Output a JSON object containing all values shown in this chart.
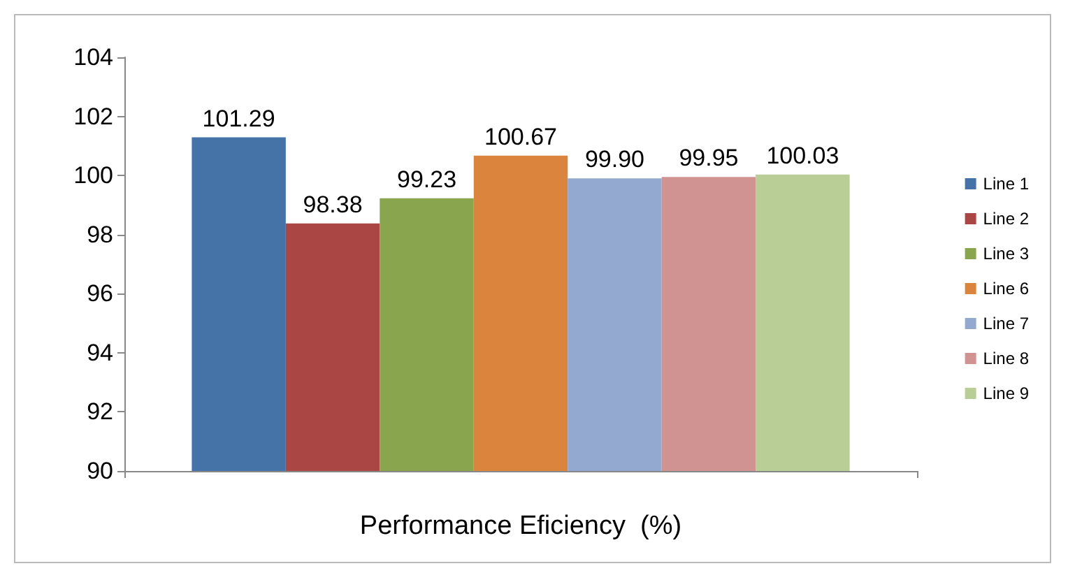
{
  "chart_data": {
    "type": "bar",
    "xlabel": "Performance Eficiency  (%)",
    "categories": [
      null
    ],
    "series": [
      {
        "name": "Line 1",
        "color": "#4572a7",
        "values": [
          101.29
        ]
      },
      {
        "name": "Line 2",
        "color": "#aa4643",
        "values": [
          98.38
        ]
      },
      {
        "name": "Line 3",
        "color": "#89a54e",
        "values": [
          99.23
        ]
      },
      {
        "name": "Line 6",
        "color": "#db843d",
        "values": [
          100.67
        ]
      },
      {
        "name": "Line 7",
        "color": "#93a9cf",
        "values": [
          99.9
        ]
      },
      {
        "name": "Line 8",
        "color": "#d19392",
        "values": [
          99.95
        ]
      },
      {
        "name": "Line 9",
        "color": "#b9cd96",
        "values": [
          100.03
        ]
      }
    ],
    "value_labels": [
      "101.29",
      "98.38",
      "99.23",
      "100.67",
      "99.90",
      "99.95",
      "100.03"
    ],
    "ylim": [
      90,
      104
    ],
    "yticks": [
      90,
      92,
      94,
      96,
      98,
      100,
      102,
      104
    ],
    "grid": false,
    "legend": "right"
  }
}
